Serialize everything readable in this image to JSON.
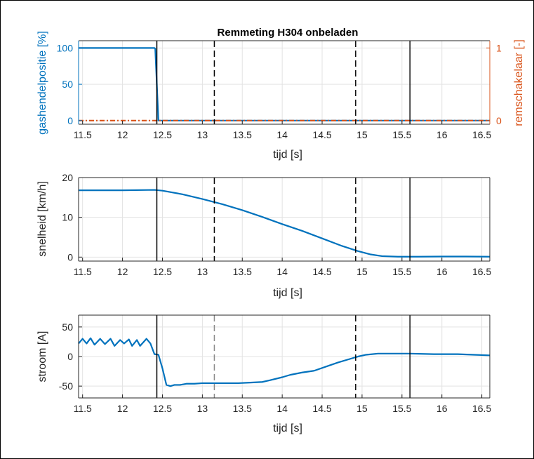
{
  "chart_data": [
    {
      "type": "line",
      "title": "Remmeting H304 onbeladen",
      "xlabel": "tijd [s]",
      "ylabel": "gashendelpositie [%]",
      "ylabel_right": "remschakelaar [-]",
      "xlim": [
        11.45,
        16.6
      ],
      "ylim": [
        -5,
        110
      ],
      "ylim_right": [
        -0.05,
        1.1
      ],
      "xticks": [
        "11.5",
        "12",
        "12.5",
        "13",
        "13.5",
        "14",
        "14.5",
        "15",
        "15.5",
        "16",
        "16.5"
      ],
      "yticks": [
        "0",
        "50",
        "100"
      ],
      "yticks_right": [
        "0",
        "1"
      ],
      "grid": true,
      "series": [
        {
          "axis": "left",
          "style": "solid",
          "color": "#0072BD",
          "points": [
            [
              11.45,
              100
            ],
            [
              12.4,
              100
            ],
            [
              12.41,
              99
            ],
            [
              12.43,
              50
            ],
            [
              12.45,
              0
            ],
            [
              16.6,
              0
            ]
          ]
        },
        {
          "axis": "right",
          "style": "dashdot",
          "color": "#D95319",
          "points": [
            [
              11.45,
              0
            ],
            [
              16.6,
              0
            ]
          ]
        }
      ],
      "vlines": [
        {
          "x": 12.43,
          "style": "solid"
        },
        {
          "x": 13.15,
          "style": "dashed"
        },
        {
          "x": 14.92,
          "style": "dashed"
        },
        {
          "x": 15.6,
          "style": "solid"
        }
      ]
    },
    {
      "type": "line",
      "title": "",
      "xlabel": "tijd [s]",
      "ylabel": "snelheid [km/h]",
      "xlim": [
        11.45,
        16.6
      ],
      "ylim": [
        -1,
        20
      ],
      "xticks": [
        "11.5",
        "12",
        "12.5",
        "13",
        "13.5",
        "14",
        "14.5",
        "15",
        "15.5",
        "16",
        "16.5"
      ],
      "yticks": [
        "0",
        "10",
        "20"
      ],
      "grid": true,
      "series": [
        {
          "axis": "left",
          "style": "solid",
          "color": "#0072BD",
          "points": [
            [
              11.45,
              16.8
            ],
            [
              12.0,
              16.8
            ],
            [
              12.4,
              16.9
            ],
            [
              12.5,
              16.7
            ],
            [
              12.75,
              15.8
            ],
            [
              13.0,
              14.6
            ],
            [
              13.25,
              13.3
            ],
            [
              13.5,
              11.8
            ],
            [
              13.75,
              10.1
            ],
            [
              14.0,
              8.3
            ],
            [
              14.25,
              6.6
            ],
            [
              14.5,
              4.7
            ],
            [
              14.75,
              2.8
            ],
            [
              14.95,
              1.5
            ],
            [
              15.1,
              0.7
            ],
            [
              15.25,
              0.25
            ],
            [
              15.45,
              0.1
            ],
            [
              15.7,
              0.1
            ],
            [
              16.0,
              0.15
            ],
            [
              16.3,
              0.15
            ],
            [
              16.6,
              0.1
            ]
          ]
        }
      ],
      "vlines": [
        {
          "x": 12.43,
          "style": "solid"
        },
        {
          "x": 13.15,
          "style": "dashed"
        },
        {
          "x": 14.92,
          "style": "dashed"
        },
        {
          "x": 15.6,
          "style": "solid"
        }
      ]
    },
    {
      "type": "line",
      "title": "",
      "xlabel": "tijd [s]",
      "ylabel": "stroom [A]",
      "xlim": [
        11.45,
        16.6
      ],
      "ylim": [
        -70,
        70
      ],
      "xticks": [
        "11.5",
        "12",
        "12.5",
        "13",
        "13.5",
        "14",
        "14.5",
        "15",
        "15.5",
        "16",
        "16.5"
      ],
      "yticks": [
        "-50",
        "0",
        "50"
      ],
      "grid": true,
      "series": [
        {
          "axis": "left",
          "style": "solid",
          "color": "#0072BD",
          "points": [
            [
              11.45,
              22
            ],
            [
              11.5,
              30
            ],
            [
              11.55,
              22
            ],
            [
              11.6,
              31
            ],
            [
              11.65,
              20
            ],
            [
              11.72,
              30
            ],
            [
              11.78,
              21
            ],
            [
              11.85,
              30
            ],
            [
              11.9,
              18
            ],
            [
              11.97,
              28
            ],
            [
              12.02,
              22
            ],
            [
              12.08,
              29
            ],
            [
              12.12,
              18
            ],
            [
              12.18,
              28
            ],
            [
              12.22,
              18
            ],
            [
              12.3,
              30
            ],
            [
              12.35,
              22
            ],
            [
              12.4,
              4
            ],
            [
              12.45,
              3
            ],
            [
              12.5,
              -20
            ],
            [
              12.55,
              -48
            ],
            [
              12.6,
              -50
            ],
            [
              12.65,
              -48
            ],
            [
              12.72,
              -48
            ],
            [
              12.8,
              -46
            ],
            [
              12.9,
              -46
            ],
            [
              13.0,
              -45
            ],
            [
              13.15,
              -45
            ],
            [
              13.3,
              -45
            ],
            [
              13.45,
              -45
            ],
            [
              13.6,
              -44
            ],
            [
              13.75,
              -43
            ],
            [
              13.85,
              -40
            ],
            [
              14.0,
              -35
            ],
            [
              14.1,
              -31
            ],
            [
              14.25,
              -27
            ],
            [
              14.4,
              -24
            ],
            [
              14.55,
              -17
            ],
            [
              14.7,
              -10
            ],
            [
              14.85,
              -4
            ],
            [
              14.95,
              0
            ],
            [
              15.05,
              3
            ],
            [
              15.2,
              5
            ],
            [
              15.4,
              5
            ],
            [
              15.6,
              5
            ],
            [
              15.9,
              4
            ],
            [
              16.2,
              4
            ],
            [
              16.4,
              3
            ],
            [
              16.6,
              2
            ]
          ]
        }
      ],
      "vlines": [
        {
          "x": 12.43,
          "style": "solid"
        },
        {
          "x": 13.15,
          "style": "dashed_gray"
        },
        {
          "x": 14.92,
          "style": "dashed"
        },
        {
          "x": 15.6,
          "style": "solid"
        }
      ]
    }
  ]
}
